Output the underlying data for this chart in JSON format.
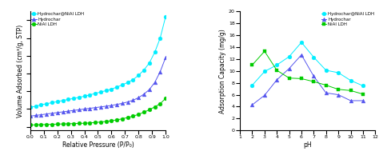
{
  "left": {
    "xlabel": "Relative Pressure (P/P₀)",
    "ylabel": "Volume Adsorbed (cm³/g, STP)",
    "xlim": [
      0.0,
      1.0
    ],
    "xticks": [
      0.0,
      0.1,
      0.2,
      0.3,
      0.4,
      0.5,
      0.6,
      0.7,
      0.8,
      0.9,
      1.0
    ],
    "series": {
      "Hydrochar@NiAl LDH": {
        "color": "#00eeff",
        "marker": "o",
        "markersize": 3.5,
        "x": [
          0.0,
          0.04,
          0.08,
          0.12,
          0.16,
          0.2,
          0.24,
          0.28,
          0.32,
          0.36,
          0.4,
          0.44,
          0.48,
          0.52,
          0.56,
          0.6,
          0.64,
          0.68,
          0.72,
          0.76,
          0.8,
          0.84,
          0.88,
          0.92,
          0.96,
          1.0
        ],
        "y": [
          5.5,
          5.8,
          6.2,
          6.5,
          6.8,
          7.1,
          7.4,
          7.7,
          8.0,
          8.3,
          8.6,
          9.0,
          9.4,
          9.8,
          10.2,
          10.6,
          11.2,
          11.8,
          12.5,
          13.3,
          14.5,
          16.0,
          18.0,
          21.0,
          25.0,
          31.0
        ]
      },
      "Hydrochar": {
        "color": "#5555ee",
        "marker": "^",
        "markersize": 3.5,
        "x": [
          0.0,
          0.04,
          0.08,
          0.12,
          0.16,
          0.2,
          0.24,
          0.28,
          0.32,
          0.36,
          0.4,
          0.44,
          0.48,
          0.52,
          0.56,
          0.6,
          0.64,
          0.68,
          0.72,
          0.76,
          0.8,
          0.84,
          0.88,
          0.92,
          0.96,
          1.0
        ],
        "y": [
          3.0,
          3.2,
          3.4,
          3.6,
          3.8,
          4.0,
          4.2,
          4.4,
          4.6,
          4.8,
          5.0,
          5.2,
          5.4,
          5.6,
          5.8,
          6.0,
          6.3,
          6.6,
          7.0,
          7.5,
          8.2,
          9.2,
          10.5,
          12.5,
          15.5,
          19.5
        ]
      },
      "NiAl LDH": {
        "color": "#00cc00",
        "marker": "o",
        "markersize": 3.5,
        "x": [
          0.0,
          0.04,
          0.08,
          0.12,
          0.16,
          0.2,
          0.24,
          0.28,
          0.32,
          0.36,
          0.4,
          0.44,
          0.48,
          0.52,
          0.56,
          0.6,
          0.64,
          0.68,
          0.72,
          0.76,
          0.8,
          0.84,
          0.88,
          0.92,
          0.96,
          1.0
        ],
        "y": [
          0.5,
          0.55,
          0.6,
          0.65,
          0.7,
          0.75,
          0.8,
          0.85,
          0.9,
          0.95,
          1.0,
          1.1,
          1.2,
          1.35,
          1.5,
          1.7,
          1.95,
          2.25,
          2.6,
          3.0,
          3.5,
          4.1,
          4.8,
          5.6,
          6.5,
          8.0
        ]
      }
    }
  },
  "right": {
    "xlabel": "pH",
    "ylabel": "Adsorption Capacity (mg/g)",
    "xlim": [
      1,
      12
    ],
    "ylim": [
      0,
      20
    ],
    "xticks": [
      1,
      2,
      3,
      4,
      5,
      6,
      7,
      8,
      9,
      10,
      11,
      12
    ],
    "yticks": [
      0,
      2,
      4,
      6,
      8,
      10,
      12,
      14,
      16,
      18,
      20
    ],
    "series": {
      "Hydrochar@NiAl LDH": {
        "color": "#00eeff",
        "marker": "o",
        "markersize": 3.5,
        "x": [
          2,
          3,
          4,
          5,
          6,
          7,
          8,
          9,
          10,
          11
        ],
        "y": [
          7.6,
          9.9,
          11.0,
          12.4,
          14.8,
          12.3,
          10.1,
          9.7,
          8.4,
          7.5
        ]
      },
      "Hydrochar": {
        "color": "#5555ee",
        "marker": "^",
        "markersize": 3.5,
        "x": [
          2,
          3,
          4,
          5,
          6,
          7,
          8,
          9,
          10,
          11
        ],
        "y": [
          4.3,
          5.9,
          8.5,
          10.4,
          12.7,
          9.1,
          6.3,
          6.0,
          5.0,
          5.0
        ]
      },
      "NiAl LDH": {
        "color": "#00cc00",
        "marker": "s",
        "markersize": 3.5,
        "x": [
          2,
          3,
          4,
          5,
          6,
          7,
          8,
          9,
          10,
          11
        ],
        "y": [
          11.0,
          13.3,
          10.1,
          8.8,
          8.7,
          8.2,
          7.6,
          6.9,
          6.7,
          6.1
        ]
      }
    }
  }
}
